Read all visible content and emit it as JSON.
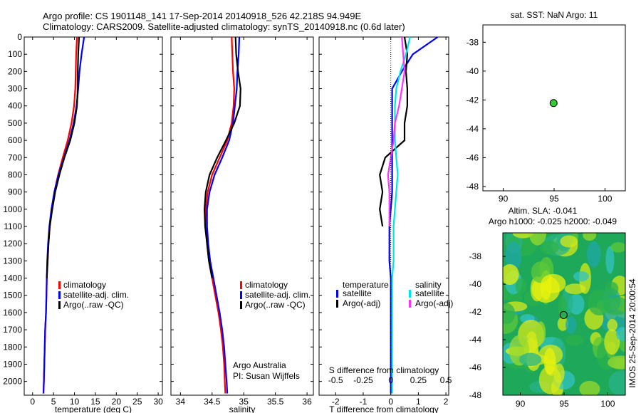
{
  "header": {
    "line1": "Argo profile: CS 1901148_141 17-Sep-2014 20140918_526 42.218S 94.949E",
    "line2": "Climatology: CARS2009. Satellite-adjusted climatology: synTS_20140918.nc (0.6d later)"
  },
  "colors": {
    "climatology": "#ff0000",
    "satellite": "#0000ff",
    "argo": "#000000",
    "salinity_sat": "#00e5e5",
    "salinity_argo": "#ff33ff",
    "marker": "#33cc33"
  },
  "chart_data": [
    {
      "type": "line",
      "id": "temperature",
      "xlabel": "temperature (deg C)",
      "ylabel": "",
      "xlim": [
        -2,
        31
      ],
      "ylim": [
        0,
        2080
      ],
      "xticks": [
        "0",
        "5",
        "10",
        "15",
        "20",
        "25",
        "30"
      ],
      "yticks": [
        "0",
        "100",
        "200",
        "300",
        "400",
        "500",
        "600",
        "700",
        "800",
        "900",
        "1000",
        "1100",
        "1200",
        "1300",
        "1400",
        "1500",
        "1600",
        "1700",
        "1800",
        "1900",
        "2000"
      ],
      "depth": [
        0,
        100,
        200,
        300,
        400,
        500,
        600,
        700,
        800,
        900,
        1000,
        1100,
        1200,
        1300,
        1400,
        1500,
        1600,
        1700,
        1800,
        1900,
        2000,
        2070
      ],
      "series": [
        {
          "name": "climatology",
          "values": [
            10.6,
            10.4,
            10.3,
            10.2,
            9.9,
            9.3,
            8.4,
            7.2,
            6.1,
            5.2,
            4.6,
            4.1,
            3.8,
            3.6,
            3.4,
            3.3,
            3.2,
            3.0,
            2.9,
            2.8,
            2.7,
            2.6
          ]
        },
        {
          "name": "satellite-adj. clim.",
          "values": [
            12.3,
            11.7,
            11.2,
            10.9,
            10.5,
            9.8,
            8.8,
            7.5,
            6.2,
            5.2,
            4.5,
            4.0,
            3.7,
            3.5,
            3.4,
            3.3,
            3.2,
            3.0,
            2.9,
            2.8,
            2.7,
            2.6
          ]
        },
        {
          "name": "Argo(..raw -QC)",
          "values": [
            11.1,
            10.9,
            10.8,
            10.8,
            10.6,
            10.0,
            9.0,
            7.6,
            6.4,
            5.4,
            4.7,
            4.1,
            3.8,
            3.6,
            3.4
          ]
        }
      ],
      "legend": [
        "climatology",
        "satellite-adj. clim.",
        "Argo(..raw -QC)"
      ]
    },
    {
      "type": "line",
      "id": "salinity",
      "xlabel": "salinity",
      "xlim": [
        33.85,
        36.1
      ],
      "ylim": [
        0,
        2080
      ],
      "xticks": [
        "34",
        "34.5",
        "35",
        "35.5",
        "36"
      ],
      "depth": [
        0,
        100,
        200,
        300,
        400,
        500,
        600,
        700,
        800,
        900,
        1000,
        1100,
        1200,
        1300,
        1400,
        1500,
        1600,
        1700,
        1800,
        1900,
        2000,
        2070
      ],
      "series": [
        {
          "name": "climatology",
          "values": [
            34.81,
            34.82,
            34.83,
            34.85,
            34.84,
            34.81,
            34.74,
            34.62,
            34.5,
            34.43,
            34.4,
            34.4,
            34.42,
            34.45,
            34.5,
            34.55,
            34.6,
            34.64,
            34.67,
            34.69,
            34.7,
            34.71
          ]
        },
        {
          "name": "satellite-adj. clim.",
          "values": [
            34.93,
            34.92,
            34.9,
            34.89,
            34.86,
            34.83,
            34.77,
            34.66,
            34.54,
            34.46,
            34.42,
            34.42,
            34.44,
            34.47,
            34.52,
            34.57,
            34.62,
            34.66,
            34.69,
            34.71,
            34.73,
            34.74
          ]
        },
        {
          "name": "Argo(..raw -QC)",
          "values": [
            34.87,
            34.88,
            34.91,
            34.95,
            34.94,
            34.85,
            34.72,
            34.58,
            34.46,
            34.4,
            34.38,
            34.39,
            34.42,
            34.45,
            34.5
          ]
        }
      ],
      "legend": [
        "climatology",
        "satellite-adj. clim.",
        "Argo(..raw -QC)"
      ],
      "annotation": [
        "Argo Australia",
        "PI: Susan Wijffels"
      ]
    },
    {
      "type": "line",
      "id": "difference",
      "xlabel": "T difference from climatology",
      "top_xlabel": "S difference from climatology",
      "xlim": [
        -2.6,
        2.1
      ],
      "ylim": [
        0,
        2080
      ],
      "xticks": [
        "-2",
        "-1",
        "0",
        "1",
        "2"
      ],
      "top_xticks": [
        "-0.5",
        "-0.25",
        "0",
        "0.25",
        "0.5"
      ],
      "depth": [
        0,
        100,
        200,
        300,
        400,
        500,
        600,
        700,
        800,
        900,
        1000,
        1100,
        1200,
        1300,
        1400,
        1500,
        1600,
        1700,
        1800,
        1900,
        2000,
        2070
      ],
      "series": [
        {
          "name": "temperature satellite",
          "values": [
            1.7,
            0.8,
            0.4,
            0.05,
            0.05,
            0.05,
            0.05,
            0.05,
            0.05,
            0.05,
            0.0,
            -0.05,
            -0.05,
            -0.05,
            0.0,
            0.0,
            0.0,
            0.0,
            0.0,
            0.0,
            0.0,
            0.0
          ]
        },
        {
          "name": "temperature Argo(-adj)",
          "values": [
            0.5,
            0.6,
            0.55,
            0.6,
            0.6,
            0.5,
            0.5,
            -0.2,
            -0.4,
            -0.3,
            -0.4,
            -0.3
          ]
        },
        {
          "name": "salinity satellite",
          "values": [
            0.7,
            0.55,
            0.35,
            0.2,
            0.15,
            0.15,
            0.15,
            0.2,
            0.25,
            0.2,
            0.15,
            0.1,
            0.1,
            0.1,
            0.05,
            0.05,
            0.05,
            0.05,
            0.05,
            0.05,
            0.05,
            0.05
          ]
        },
        {
          "name": "salinity Argo(-adj)",
          "values": [
            0.4,
            0.45,
            0.5,
            0.4,
            0.3,
            0.15,
            0.1,
            0.0,
            -0.1,
            -0.05,
            -0.05,
            -0.05
          ]
        }
      ],
      "legend_headers": [
        "temperature",
        "salinity"
      ],
      "legend": [
        "satellite",
        "Argo(-adj)",
        "satellite",
        "Argo(-adj)"
      ]
    },
    {
      "type": "scatter",
      "id": "location",
      "title": "sat. SST: NaN Argo: 11",
      "xlim": [
        88,
        102
      ],
      "ylim": [
        -48.3,
        -36.8
      ],
      "xticks": [
        "90",
        "95",
        "100"
      ],
      "yticks": [
        "-38",
        "-40",
        "-42",
        "-44",
        "-46",
        "-48"
      ],
      "point": {
        "lon": 94.949,
        "lat": -42.218
      }
    },
    {
      "type": "heatmap",
      "id": "altimetry",
      "title": "Altim. SLA: -0.041",
      "subtitle": "Argo h1000: -0.025 h2000: -0.049",
      "xlim": [
        88,
        102
      ],
      "ylim": [
        -48,
        -36.3
      ],
      "xticks": [
        "90",
        "95",
        "100"
      ],
      "yticks": [
        "-38",
        "-40",
        "-42",
        "-44",
        "-46",
        "-48"
      ],
      "point": {
        "lon": 94.949,
        "lat": -42.218
      }
    }
  ],
  "side_label": "IMOS 25-Sep-2014 20:00:54"
}
